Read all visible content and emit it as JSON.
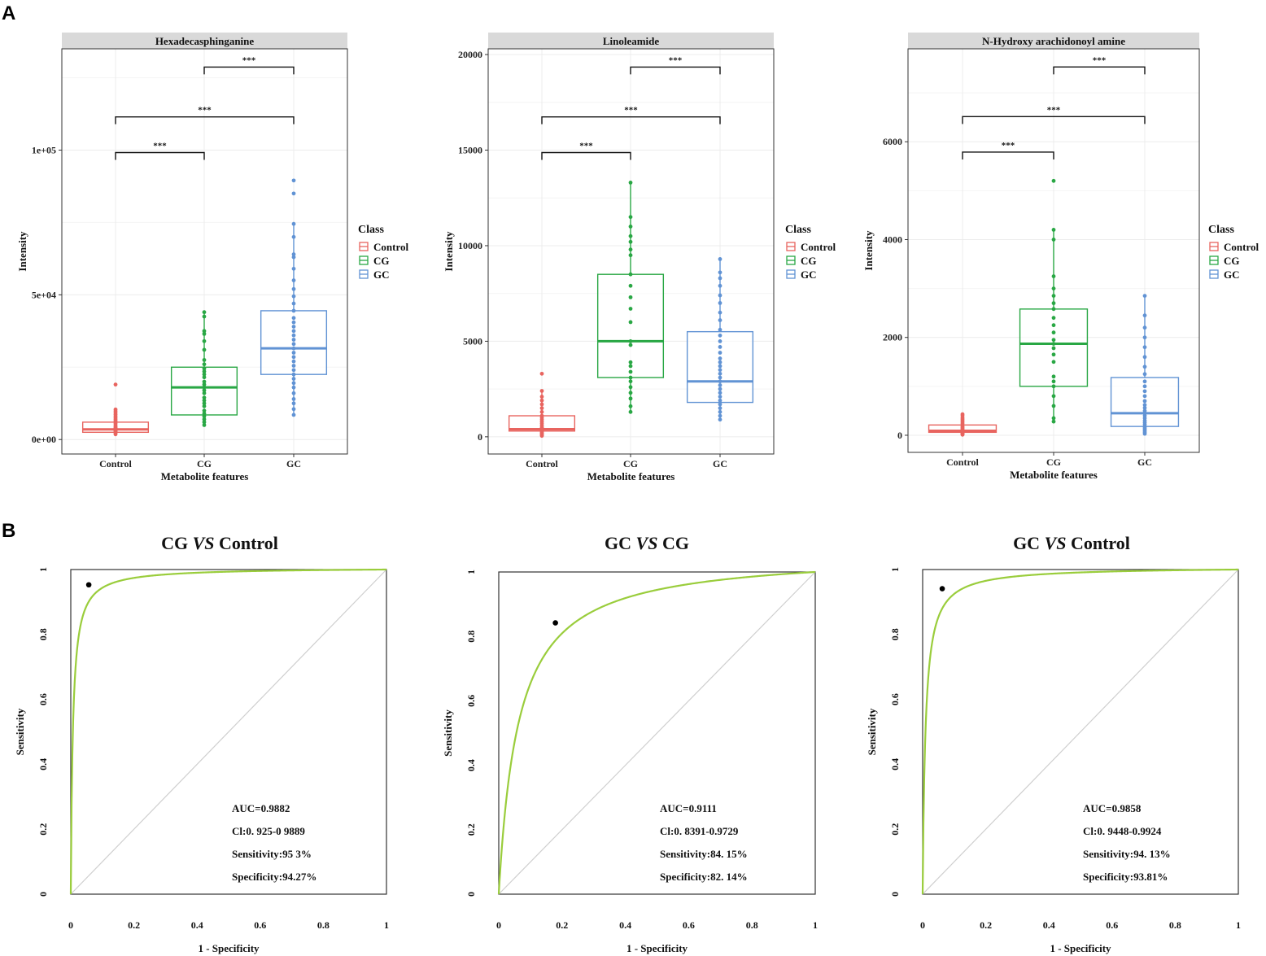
{
  "figure": {
    "panel_a_label": "A",
    "panel_b_label": "B"
  },
  "colors": {
    "Control": "#e8645f",
    "CG": "#29a744",
    "GC": "#6193d4",
    "roc_curve": "#9acd3c",
    "strip_bg": "#d9d9d9"
  },
  "chart_data": [
    {
      "type": "box",
      "title": "Hexadecasphinganine",
      "xlabel": "Metabolite features",
      "ylabel": "Intensity",
      "categories": [
        "Control",
        "CG",
        "GC"
      ],
      "ylim": [
        -5000,
        135000
      ],
      "yticks": [
        0,
        50000,
        100000
      ],
      "ytick_labels": [
        "0e+00",
        "5e+04",
        "1e+05"
      ],
      "legend": {
        "title": "Class",
        "entries": [
          "Control",
          "CG",
          "GC"
        ]
      },
      "boxes": [
        {
          "name": "Control",
          "q1": 2500,
          "median": 3500,
          "q3": 6000,
          "whisker_low": 1500,
          "whisker_high": 10000,
          "points": [
            1800,
            2200,
            2600,
            2900,
            3100,
            3300,
            3500,
            3700,
            3900,
            4200,
            4500,
            5000,
            5500,
            6000,
            6500,
            7000,
            7500,
            8000,
            8600,
            9200,
            9800,
            10400,
            19000
          ]
        },
        {
          "name": "CG",
          "q1": 8500,
          "median": 18000,
          "q3": 25000,
          "whisker_low": 5000,
          "whisker_high": 44000,
          "points": [
            5000,
            6000,
            7000,
            8000,
            9000,
            10000,
            11500,
            12500,
            13500,
            14500,
            16000,
            17000,
            18000,
            19000,
            20000,
            21500,
            22500,
            23500,
            24500,
            26000,
            27500,
            31000,
            34000,
            36500,
            37500,
            42500,
            44000
          ]
        },
        {
          "name": "GC",
          "q1": 22500,
          "median": 31500,
          "q3": 44500,
          "whisker_low": 8500,
          "whisker_high": 75000,
          "points": [
            8500,
            10500,
            12500,
            14000,
            16000,
            18000,
            19500,
            21000,
            22500,
            24000,
            25500,
            27000,
            28500,
            30000,
            31500,
            33000,
            34500,
            36000,
            37500,
            39000,
            40500,
            42000,
            44500,
            47000,
            49500,
            52000,
            55000,
            59000,
            63000,
            64000,
            70000,
            74500,
            85000,
            89500
          ]
        }
      ],
      "significance": [
        {
          "pair": [
            "Control",
            "CG"
          ],
          "label": "***"
        },
        {
          "pair": [
            "Control",
            "GC"
          ],
          "label": "***"
        },
        {
          "pair": [
            "CG",
            "GC"
          ],
          "label": "***"
        }
      ]
    },
    {
      "type": "box",
      "title": "Linoleamide",
      "xlabel": "Metabolite features",
      "ylabel": "Intensity",
      "categories": [
        "Control",
        "CG",
        "GC"
      ],
      "ylim": [
        -900,
        20300
      ],
      "yticks": [
        0,
        5000,
        10000,
        15000,
        20000
      ],
      "ytick_labels": [
        "0",
        "5000",
        "10000",
        "15000",
        "20000"
      ],
      "legend": {
        "title": "Class",
        "entries": [
          "Control",
          "CG",
          "GC"
        ]
      },
      "boxes": [
        {
          "name": "Control",
          "q1": 300,
          "median": 400,
          "q3": 1100,
          "whisker_low": 50,
          "whisker_high": 2400,
          "points": [
            50,
            100,
            150,
            200,
            250,
            300,
            350,
            400,
            450,
            500,
            600,
            700,
            800,
            900,
            1000,
            1100,
            1300,
            1500,
            1700,
            1900,
            2100,
            2400,
            3300
          ]
        },
        {
          "name": "CG",
          "q1": 3100,
          "median": 5000,
          "q3": 8500,
          "whisker_low": 1300,
          "whisker_high": 13300,
          "points": [
            1300,
            1600,
            2000,
            2300,
            2600,
            2900,
            3100,
            3400,
            3700,
            3900,
            4800,
            5000,
            6000,
            6700,
            7300,
            7900,
            8500,
            9500,
            9800,
            10200,
            10500,
            11000,
            11500,
            13300
          ]
        },
        {
          "name": "GC",
          "q1": 1800,
          "median": 2900,
          "q3": 5500,
          "whisker_low": 900,
          "whisker_high": 9300,
          "points": [
            900,
            1100,
            1300,
            1500,
            1700,
            1900,
            2100,
            2300,
            2500,
            2700,
            2900,
            3100,
            3300,
            3500,
            3700,
            3900,
            4100,
            4400,
            4700,
            5000,
            5300,
            5600,
            6100,
            6500,
            7000,
            7400,
            7900,
            8300,
            8600,
            9300
          ]
        }
      ],
      "significance": [
        {
          "pair": [
            "Control",
            "CG"
          ],
          "label": "***"
        },
        {
          "pair": [
            "Control",
            "GC"
          ],
          "label": "***"
        },
        {
          "pair": [
            "CG",
            "GC"
          ],
          "label": "***"
        }
      ]
    },
    {
      "type": "box",
      "title": "N-Hydroxy arachidonoyl amine",
      "xlabel": "Metabolite features",
      "ylabel": "Intensity",
      "categories": [
        "Control",
        "CG",
        "GC"
      ],
      "ylim": [
        -350,
        7900
      ],
      "yticks": [
        0,
        2000,
        4000,
        6000
      ],
      "ytick_labels": [
        "0",
        "2000",
        "4000",
        "6000"
      ],
      "legend": {
        "title": "Class",
        "entries": [
          "Control",
          "CG",
          "GC"
        ]
      },
      "boxes": [
        {
          "name": "Control",
          "q1": 60,
          "median": 90,
          "q3": 210,
          "whisker_low": 10,
          "whisker_high": 430,
          "points": [
            10,
            20,
            30,
            40,
            50,
            60,
            70,
            80,
            90,
            100,
            120,
            140,
            160,
            180,
            210,
            240,
            270,
            300,
            330,
            360,
            400,
            430
          ]
        },
        {
          "name": "CG",
          "q1": 1000,
          "median": 1870,
          "q3": 2580,
          "whisker_low": 280,
          "whisker_high": 4200,
          "points": [
            280,
            350,
            600,
            800,
            1000,
            1100,
            1200,
            1500,
            1650,
            1780,
            1870,
            1950,
            2100,
            2250,
            2400,
            2580,
            2700,
            2850,
            3000,
            3250,
            4000,
            4200,
            5200
          ]
        },
        {
          "name": "GC",
          "q1": 180,
          "median": 450,
          "q3": 1180,
          "whisker_low": 30,
          "whisker_high": 2850,
          "points": [
            30,
            60,
            90,
            120,
            150,
            180,
            220,
            260,
            300,
            350,
            400,
            450,
            500,
            560,
            620,
            700,
            800,
            900,
            1000,
            1100,
            1250,
            1400,
            1600,
            1800,
            2000,
            2200,
            2450,
            2850
          ]
        }
      ],
      "significance": [
        {
          "pair": [
            "Control",
            "CG"
          ],
          "label": "***"
        },
        {
          "pair": [
            "Control",
            "GC"
          ],
          "label": "***"
        },
        {
          "pair": [
            "CG",
            "GC"
          ],
          "label": "***"
        }
      ]
    },
    {
      "type": "roc",
      "title_parts": [
        "CG",
        "VS",
        "Control"
      ],
      "xlabel": "1 - Specificity",
      "ylabel": "Sensitivity",
      "xlim": [
        0,
        1
      ],
      "ylim": [
        0,
        1
      ],
      "ticks": [
        0,
        0.2,
        0.4,
        0.6,
        0.8,
        1
      ],
      "tick_labels": [
        "0",
        "0.2",
        "0.4",
        "0.6",
        "0.8",
        "1"
      ],
      "curve_shape": 150,
      "cutoff_point": {
        "fpr": 0.057,
        "tpr": 0.953
      },
      "stats": [
        "AUC=0.9882",
        "Cl:0. 925-0 9889",
        "Sensitivity:95 3%",
        "Specificity:94.27%"
      ]
    },
    {
      "type": "roc",
      "title_parts": [
        "GC",
        "VS",
        "CG"
      ],
      "xlabel": "1 - Specificity",
      "ylabel": "Sensitivity",
      "xlim": [
        0,
        1
      ],
      "ylim": [
        0,
        1
      ],
      "ticks": [
        0,
        0.2,
        0.4,
        0.6,
        0.8,
        1
      ],
      "tick_labels": [
        "0",
        "0.2",
        "0.4",
        "0.6",
        "0.8",
        "1"
      ],
      "curve_shape": 16,
      "cutoff_point": {
        "fpr": 0.179,
        "tpr": 0.842
      },
      "stats": [
        "AUC=0.9111",
        "Cl:0. 8391-0.9729",
        "Sensitivity:84. 15%",
        "Specificity:82. 14%"
      ]
    },
    {
      "type": "roc",
      "title_parts": [
        "GC",
        "VS",
        "Control"
      ],
      "xlabel": "1 - Specificity",
      "ylabel": "Sensitivity",
      "xlim": [
        0,
        1
      ],
      "ylim": [
        0,
        1
      ],
      "ticks": [
        0,
        0.2,
        0.4,
        0.6,
        0.8,
        1
      ],
      "tick_labels": [
        "0",
        "0.2",
        "0.4",
        "0.6",
        "0.8",
        "1"
      ],
      "curve_shape": 110,
      "cutoff_point": {
        "fpr": 0.062,
        "tpr": 0.941
      },
      "stats": [
        "AUC=0.9858",
        "Cl:0. 9448-0.9924",
        "Sensitivity:94. 13%",
        "Specificity:93.81%"
      ]
    }
  ]
}
